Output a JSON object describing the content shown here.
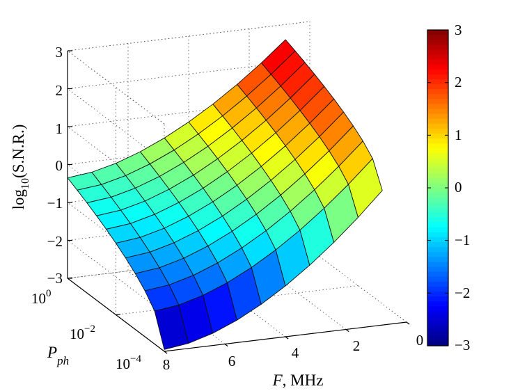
{
  "chart_data": {
    "type": "surface3d",
    "z_label": "log10(S.N.R.)",
    "z_label_main": "log",
    "z_label_sub": "10",
    "z_label_tail": "(S.N.R.)",
    "x_label": "F, MHz",
    "x_label_var": "F",
    "x_label_unit": ", MHz",
    "y_label": "Pph",
    "y_label_main": "P",
    "y_label_sub": "ph",
    "x_ticks": [
      "8",
      "6",
      "4",
      "2",
      "0"
    ],
    "x_tick_values": [
      8,
      6,
      4,
      2,
      0
    ],
    "y_ticks": [
      {
        "base": "10",
        "exp": "0"
      },
      {
        "base": "10",
        "exp": "−2"
      },
      {
        "base": "10",
        "exp": "−4"
      }
    ],
    "y_tick_values": [
      1,
      0.01,
      0.0001
    ],
    "z_ticks": [
      "3",
      "2",
      "1",
      "0",
      "−1",
      "−2",
      "−3"
    ],
    "z_tick_values": [
      3,
      2,
      1,
      0,
      -1,
      -2,
      -3
    ],
    "z_range": [
      -3,
      3
    ],
    "x_range": [
      0,
      8
    ],
    "log10_y_range": [
      -4,
      0
    ],
    "colorbar_ticks": [
      "3",
      "2",
      "1",
      "0",
      "−1",
      "−2",
      "−3"
    ],
    "colorbar_values": [
      3,
      2,
      1,
      0,
      -1,
      -2,
      -3
    ],
    "colormap": "jet",
    "surface": {
      "F_values": [
        8,
        7.2,
        6.4,
        5.6,
        4.8,
        4,
        3.2,
        2.4,
        1.6,
        0.8
      ],
      "log10_Pph_values": [
        -4,
        -3.6,
        -3.2,
        -2.8,
        -2.4,
        -2,
        -1.6,
        -1.2,
        -0.8,
        -0.4,
        0
      ],
      "corner_values": {
        "F8_P1e-4": -2.95,
        "F8_P1": -0.35,
        "F0.8_P1e-4": 0.55,
        "F0.8_P1": 2.6
      }
    }
  }
}
